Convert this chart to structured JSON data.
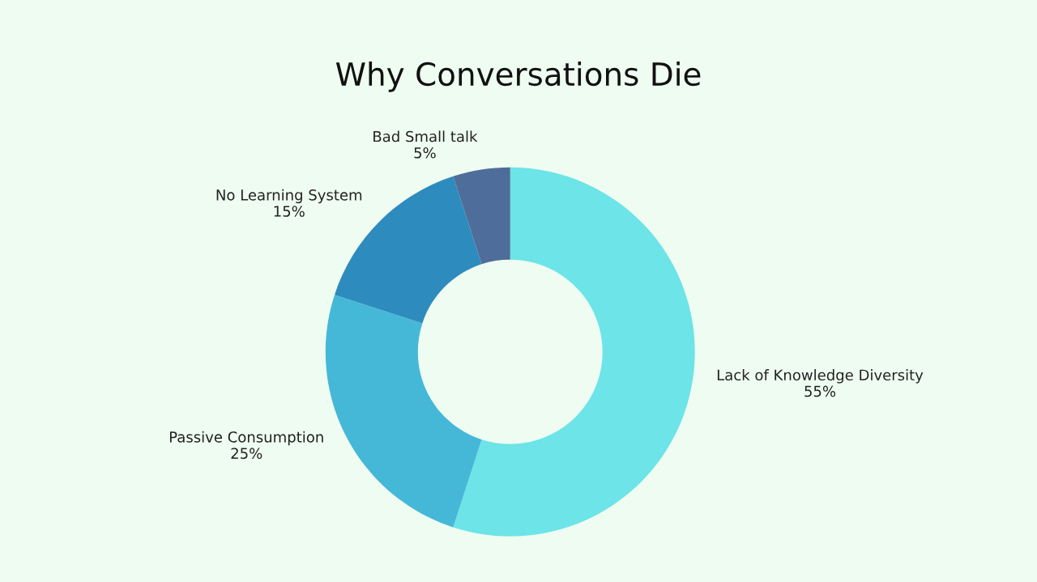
{
  "chart_data": {
    "type": "donut",
    "title": "Why Conversations Die",
    "categories": [
      "Lack of Knowledge Diversity",
      "Passive Consumption",
      "No Learning System",
      "Bad Small talk"
    ],
    "values": [
      55,
      25,
      15,
      5
    ],
    "value_labels": [
      "55%",
      "25%",
      "15%",
      "5%"
    ],
    "colors": [
      "#6ce4e8",
      "#45b8d8",
      "#2e8bbd",
      "#4f6d9a"
    ],
    "legend": false
  }
}
